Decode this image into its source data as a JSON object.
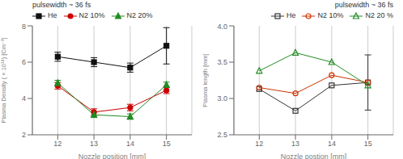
{
  "chart_data": [
    {
      "type": "line",
      "title": "pulsewidth ~ 36 fs",
      "x_label": "Nozzle position [mm]",
      "y_label": "Plasma Density  ( × 10¹⁸) [Cm⁻³]",
      "x": [
        12,
        13,
        14,
        15
      ],
      "xlim": [
        11.3,
        15.7
      ],
      "xticks": [
        12,
        13,
        14,
        15
      ],
      "ylim": [
        2,
        8
      ],
      "yticks": [
        2,
        4,
        6,
        8
      ],
      "grid": "x",
      "legend": "upper left",
      "series": [
        {
          "name": "He",
          "color": "#111111",
          "marker": "square",
          "values": [
            6.3,
            6.0,
            5.7,
            6.9
          ],
          "errors": [
            0.25,
            0.25,
            0.25,
            1.0
          ]
        },
        {
          "name": "N2 10%",
          "color": "#cc0000",
          "marker": "circle",
          "values": [
            4.7,
            3.25,
            3.5,
            4.45
          ],
          "errors": [
            0.18,
            0.18,
            0.18,
            0.18
          ]
        },
        {
          "name": "N2 20%",
          "color": "#228B22",
          "marker": "triangle",
          "values": [
            4.85,
            3.1,
            3.0,
            4.75
          ],
          "errors": [
            0.15,
            0.15,
            0.15,
            0.15
          ]
        }
      ]
    },
    {
      "type": "line",
      "title": "pulsewidth ~ 36 fs",
      "x_label": "Nozzle postion [mm]",
      "y_label": "Plasma length [mm]",
      "x": [
        12,
        13,
        14,
        15
      ],
      "xlim": [
        11.3,
        15.7
      ],
      "xticks": [
        12,
        13,
        14,
        15
      ],
      "ylim": [
        2.5,
        4.0
      ],
      "yticks": [
        2.5,
        {
          "value": 3.0,
          "label": "3.0"
        },
        3.5,
        {
          "value": 4.0,
          "label": "4.0"
        }
      ],
      "grid": "x",
      "legend": "upper right",
      "series": [
        {
          "name": "He",
          "color": "#333333",
          "marker": "open-square",
          "values": [
            3.13,
            2.83,
            3.18,
            3.22
          ],
          "errors": [
            0.0,
            0.0,
            0.0,
            0.38
          ]
        },
        {
          "name": "N2 10%",
          "color": "#cc3300",
          "marker": "open-circle",
          "values": [
            3.15,
            3.07,
            3.32,
            3.22
          ],
          "errors": [
            0.0,
            0.0,
            0.0,
            0.0
          ]
        },
        {
          "name": "N2 20 %",
          "color": "#228B22",
          "marker": "open-triangle",
          "values": [
            3.38,
            3.63,
            3.5,
            3.18
          ],
          "errors": [
            0.0,
            0.0,
            0.0,
            0.0
          ]
        }
      ]
    }
  ]
}
